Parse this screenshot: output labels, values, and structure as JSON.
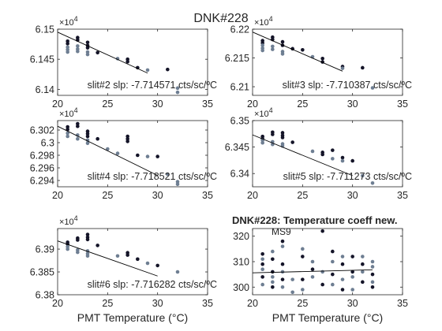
{
  "figure": {
    "title": "DNK#228"
  },
  "colors": {
    "dark": "#141428",
    "light": "#6e7e92",
    "mid": "#3c4660",
    "line": "#000000",
    "axis": "#262626"
  },
  "chart_data": [
    {
      "type": "scatter",
      "subplot": 1,
      "xlim": [
        20,
        35
      ],
      "xticks": [
        20,
        25,
        30,
        35
      ],
      "ylim": [
        6.139,
        6.15
      ],
      "yticks": [
        6.14,
        6.145,
        6.15
      ],
      "ytick_labels": [
        "6.14",
        "6.145",
        "6.15"
      ],
      "exponent": "×10",
      "exponent_power": "4",
      "annotation": "slit#2 slp: -7.714571 cts/sc/ºC",
      "fit": {
        "x": [
          20,
          29
        ],
        "y": [
          6.1495,
          6.1427
        ]
      },
      "series": [
        {
          "tone": "dark",
          "points": [
            [
              21,
              6.148
            ],
            [
              21,
              6.1476
            ],
            [
              22,
              6.1486
            ],
            [
              22,
              6.1482
            ],
            [
              23,
              6.1478
            ],
            [
              23,
              6.1473
            ],
            [
              23,
              6.1469
            ],
            [
              24,
              6.1461
            ],
            [
              27,
              6.145
            ],
            [
              27,
              6.1446
            ],
            [
              28,
              6.1436
            ],
            [
              31,
              6.1433
            ]
          ]
        },
        {
          "tone": "light",
          "points": [
            [
              21,
              6.147
            ],
            [
              21,
              6.1466
            ],
            [
              21,
              6.1462
            ],
            [
              22,
              6.1472
            ],
            [
              22,
              6.1467
            ],
            [
              22,
              6.1463
            ],
            [
              23,
              6.1462
            ],
            [
              23,
              6.1458
            ],
            [
              26,
              6.1451
            ],
            [
              29,
              6.1432
            ],
            [
              32,
              6.1402
            ],
            [
              32,
              6.1395
            ]
          ]
        }
      ]
    },
    {
      "type": "scatter",
      "subplot": 2,
      "xlim": [
        20,
        35
      ],
      "xticks": [
        20,
        25,
        30,
        35
      ],
      "ylim": [
        6.2085,
        6.22
      ],
      "yticks": [
        6.21,
        6.215,
        6.22
      ],
      "ytick_labels": [
        "6.21",
        "6.215",
        "6.22"
      ],
      "exponent": "×10",
      "exponent_power": "4",
      "annotation": "slit#3 slp: -7.710387 cts/sc/ºC",
      "fit": {
        "x": [
          20,
          29
        ],
        "y": [
          6.2195,
          6.2127
        ]
      },
      "series": [
        {
          "tone": "dark",
          "points": [
            [
              21,
              6.218
            ],
            [
              21,
              6.2176
            ],
            [
              22,
              6.2186
            ],
            [
              22,
              6.2182
            ],
            [
              23,
              6.2178
            ],
            [
              23,
              6.2172
            ],
            [
              24,
              6.2166
            ],
            [
              25,
              6.2164
            ],
            [
              27,
              6.2149
            ],
            [
              27,
              6.2143
            ],
            [
              29,
              6.2135
            ],
            [
              31,
              6.2133
            ]
          ]
        },
        {
          "tone": "light",
          "points": [
            [
              21,
              6.2172
            ],
            [
              21,
              6.2167
            ],
            [
              21,
              6.2163
            ],
            [
              22,
              6.217
            ],
            [
              22,
              6.2165
            ],
            [
              23,
              6.2161
            ],
            [
              23,
              6.2157
            ],
            [
              26,
              6.2152
            ],
            [
              29,
              6.2132
            ],
            [
              32,
              6.2098
            ]
          ]
        }
      ]
    },
    {
      "type": "scatter",
      "subplot": 3,
      "xlim": [
        20,
        35
      ],
      "xticks": [
        20,
        25,
        30,
        35
      ],
      "ylim": [
        6.293,
        6.3035
      ],
      "yticks": [
        6.294,
        6.296,
        6.298,
        6.3,
        6.302
      ],
      "ytick_labels": [
        "6.294",
        "6.296",
        "6.298",
        "6.3",
        "6.302"
      ],
      "exponent": "×10",
      "exponent_power": "4",
      "annotation": "slit#4 slp: -7.718521 cts/sc/ºC",
      "fit": {
        "x": [
          20,
          30
        ],
        "y": [
          6.3026,
          6.2948
        ]
      },
      "series": [
        {
          "tone": "dark",
          "points": [
            [
              21,
              6.3025
            ],
            [
              21,
              6.3021
            ],
            [
              22,
              6.303
            ],
            [
              22,
              6.3026
            ],
            [
              23,
              6.3018
            ],
            [
              23,
              6.3014
            ],
            [
              23,
              6.301
            ],
            [
              24,
              6.3006
            ],
            [
              27,
              6.301
            ],
            [
              27,
              6.3006
            ],
            [
              27,
              6.3002
            ],
            [
              28,
              6.298
            ],
            [
              30,
              6.2978
            ]
          ]
        },
        {
          "tone": "light",
          "points": [
            [
              21,
              6.3015
            ],
            [
              21,
              6.301
            ],
            [
              22,
              6.3012
            ],
            [
              22,
              6.3006
            ],
            [
              23,
              6.3004
            ],
            [
              23,
              6.2999
            ],
            [
              25,
              6.299
            ],
            [
              26,
              6.2983
            ],
            [
              29,
              6.2978
            ],
            [
              31,
              6.295
            ],
            [
              32,
              6.2938
            ],
            [
              32,
              6.2934
            ]
          ]
        }
      ]
    },
    {
      "type": "scatter",
      "subplot": 4,
      "xlim": [
        20,
        35
      ],
      "xticks": [
        20,
        25,
        30,
        35
      ],
      "ylim": [
        6.3375,
        6.35
      ],
      "yticks": [
        6.34,
        6.345,
        6.35
      ],
      "ytick_labels": [
        "6.34",
        "6.345",
        "6.35"
      ],
      "exponent": "×10",
      "exponent_power": "4",
      "annotation": "slit#5 slp: -7.711273 cts/sc/ºC",
      "fit": {
        "x": [
          20,
          30
        ],
        "y": [
          6.3473,
          6.3396
        ]
      },
      "series": [
        {
          "tone": "dark",
          "points": [
            [
              21,
              6.347
            ],
            [
              21,
              6.3466
            ],
            [
              22,
              6.3478
            ],
            [
              22,
              6.3474
            ],
            [
              23,
              6.3477
            ],
            [
              23,
              6.3472
            ],
            [
              23,
              6.3468
            ],
            [
              24,
              6.3459
            ],
            [
              27,
              6.344
            ],
            [
              27,
              6.3436
            ],
            [
              28,
              6.3444
            ],
            [
              29,
              6.343
            ],
            [
              30,
              6.3424
            ]
          ]
        },
        {
          "tone": "light",
          "points": [
            [
              21,
              6.3463
            ],
            [
              21,
              6.3458
            ],
            [
              22,
              6.346
            ],
            [
              22,
              6.3455
            ],
            [
              23,
              6.3456
            ],
            [
              23,
              6.3452
            ],
            [
              26,
              6.3442
            ],
            [
              28,
              6.3428
            ],
            [
              29,
              6.3424
            ],
            [
              31,
              6.3396
            ],
            [
              32,
              6.3382
            ]
          ]
        }
      ]
    },
    {
      "type": "scatter",
      "subplot": 5,
      "xlim": [
        20,
        35
      ],
      "xticks": [
        20,
        25,
        30,
        35
      ],
      "ylim": [
        6.38,
        6.3945
      ],
      "yticks": [
        6.38,
        6.385,
        6.39
      ],
      "ytick_labels": [
        "6.38",
        "6.385",
        "6.39"
      ],
      "exponent": "×10",
      "exponent_power": "4",
      "annotation": "slit#6 slp: -7.716282 cts/sc/ºC",
      "fit": {
        "x": [
          20,
          30
        ],
        "y": [
          6.3918,
          6.3841
        ]
      },
      "series": [
        {
          "tone": "dark",
          "points": [
            [
              21,
              6.3915
            ],
            [
              21,
              6.3911
            ],
            [
              22,
              6.3924
            ],
            [
              22,
              6.392
            ],
            [
              23,
              6.3932
            ],
            [
              23,
              6.3926
            ],
            [
              23,
              6.3921
            ],
            [
              24,
              6.3908
            ],
            [
              27,
              6.3892
            ],
            [
              27,
              6.3887
            ],
            [
              28,
              6.3878
            ],
            [
              30,
              6.3864
            ]
          ]
        },
        {
          "tone": "light",
          "points": [
            [
              21,
              6.3905
            ],
            [
              21,
              6.39
            ],
            [
              22,
              6.3898
            ],
            [
              22,
              6.3893
            ],
            [
              23,
              6.3896
            ],
            [
              23,
              6.389
            ],
            [
              23,
              6.3885
            ],
            [
              26,
              6.3885
            ],
            [
              29,
              6.3869
            ],
            [
              32,
              6.385
            ]
          ]
        }
      ]
    },
    {
      "type": "scatter",
      "subplot": 6,
      "title": "DNK#228: Temperature coeff new.",
      "label": "MS9",
      "xlim": [
        20,
        35
      ],
      "xticks": [
        20,
        25,
        30,
        35
      ],
      "ylim": [
        297,
        323
      ],
      "yticks": [
        300,
        310,
        320
      ],
      "ytick_labels": [
        "300",
        "310",
        "320"
      ],
      "fit": {
        "x": [
          20,
          32
        ],
        "y": [
          305.6,
          306.8
        ]
      },
      "series": [
        {
          "tone": "dark",
          "points": [
            [
              21,
              313
            ],
            [
              21,
              309
            ],
            [
              21,
              304
            ],
            [
              22,
              311
            ],
            [
              22,
              306
            ],
            [
              22,
              300
            ],
            [
              23,
              303
            ],
            [
              23,
              309
            ],
            [
              23,
              318
            ],
            [
              25,
              303
            ],
            [
              25,
              312
            ],
            [
              26,
              307
            ],
            [
              27,
              301
            ],
            [
              27,
              322
            ],
            [
              28,
              305
            ],
            [
              28,
              314
            ],
            [
              29,
              309
            ],
            [
              29,
              299
            ],
            [
              30,
              306
            ],
            [
              30,
              312
            ],
            [
              31,
              302
            ],
            [
              31,
              309
            ],
            [
              32,
              305
            ],
            [
              32,
              300
            ]
          ]
        },
        {
          "tone": "light",
          "points": [
            [
              21,
              307
            ],
            [
              21,
              301
            ],
            [
              21,
              311
            ],
            [
              22,
              304
            ],
            [
              22,
              314
            ],
            [
              22,
              302
            ],
            [
              23,
              316
            ],
            [
              23,
              300
            ],
            [
              23,
              306
            ],
            [
              24,
              298
            ],
            [
              24,
              303
            ],
            [
              25,
              315
            ],
            [
              25,
              299
            ],
            [
              26,
              310
            ],
            [
              26,
              304
            ],
            [
              27,
              306
            ],
            [
              28,
              301
            ],
            [
              28,
              310
            ],
            [
              29,
              303
            ],
            [
              29,
              312
            ],
            [
              30,
              304
            ],
            [
              30,
              299
            ],
            [
              31,
              306
            ],
            [
              31,
              312
            ],
            [
              32,
              308
            ],
            [
              32,
              302
            ],
            [
              32,
              310
            ]
          ]
        }
      ]
    }
  ],
  "x_label": "PMT Temperature (°C)"
}
